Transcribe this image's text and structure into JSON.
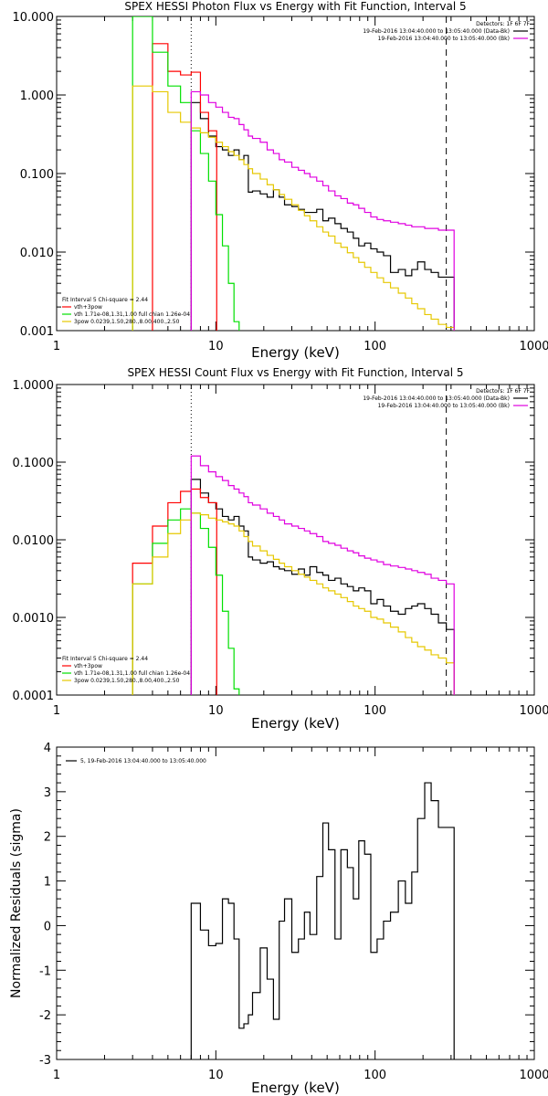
{
  "colors": {
    "black": "#000000",
    "red": "#ff0000",
    "green": "#00e000",
    "yellow": "#e6c800",
    "magenta": "#e000e0"
  },
  "chart_data": [
    {
      "id": "photon",
      "type": "line",
      "title": "SPEX HESSI Photon Flux vs Energy with Fit Function, Interval 5",
      "xlabel": "Energy (keV)",
      "ylabel": "",
      "xscale": "log",
      "yscale": "log",
      "xlim": [
        1,
        1000
      ],
      "ylim": [
        0.001,
        10
      ],
      "xticks": [
        "1",
        "10",
        "100",
        "1000"
      ],
      "yticks": [
        "0.001",
        "0.010",
        "0.100",
        "1.000",
        "10.000"
      ],
      "vline_dotted": 7,
      "vline_dashed": 280,
      "legend_top": [
        "Detectors: 1F 6F 7F",
        "19-Feb-2016 13:04:40.000 to 13:05:40.000 (Data-Bk)",
        "19-Feb-2016 13:04:40.000 to 13:05:40.000 (Bk)"
      ],
      "legend_bottom": [
        "Fit Interval 5   Chi-square = 2.44",
        "vth+3pow",
        "vth 1.71e-08,1.31,1.00  full chian 1.26e-04",
        "3pow 0.0239,1.50,280.,8.00,400.,2.50"
      ],
      "series": [
        {
          "name": "Data-Bk",
          "color": "black",
          "x": [
            7,
            8,
            9,
            10,
            11,
            12,
            13,
            14,
            15,
            16,
            17,
            19,
            21,
            23,
            25,
            27,
            30,
            33,
            36,
            39,
            43,
            47,
            51,
            56,
            61,
            67,
            73,
            79,
            86,
            94,
            103,
            113,
            125,
            140,
            155,
            170,
            185,
            205,
            225,
            250,
            280
          ],
          "y": [
            0.8,
            0.5,
            0.3,
            0.22,
            0.2,
            0.17,
            0.2,
            0.15,
            0.17,
            0.058,
            0.06,
            0.055,
            0.05,
            0.062,
            0.05,
            0.04,
            0.038,
            0.035,
            0.032,
            0.032,
            0.035,
            0.025,
            0.027,
            0.023,
            0.02,
            0.018,
            0.015,
            0.012,
            0.013,
            0.011,
            0.01,
            0.009,
            0.0055,
            0.006,
            0.005,
            0.006,
            0.0075,
            0.006,
            0.0055,
            0.0048,
            0.0048
          ]
        },
        {
          "name": "vth+3pow",
          "color": "red",
          "x": [
            4,
            5,
            6,
            7,
            8,
            9
          ],
          "y": [
            4.5,
            2.0,
            1.8,
            1.95,
            0.6,
            0.35
          ]
        },
        {
          "name": "vth",
          "color": "green",
          "x": [
            3,
            4,
            5,
            6,
            7,
            8,
            9,
            10,
            11,
            12,
            13,
            14
          ],
          "y": [
            10,
            3.5,
            1.3,
            0.8,
            0.35,
            0.18,
            0.08,
            0.03,
            0.012,
            0.004,
            0.0013,
            0.0004
          ]
        },
        {
          "name": "3pow",
          "color": "yellow",
          "x": [
            3,
            4,
            5,
            6,
            7,
            8,
            9,
            10,
            11,
            12,
            13,
            14,
            15,
            16,
            17,
            19,
            21,
            23,
            25,
            27,
            30,
            33,
            36,
            39,
            43,
            47,
            51,
            56,
            61,
            67,
            73,
            79,
            86,
            94,
            103,
            113,
            125,
            140,
            155,
            170,
            185,
            205,
            225,
            250,
            280
          ],
          "y": [
            1.3,
            1.1,
            0.6,
            0.45,
            0.38,
            0.33,
            0.29,
            0.25,
            0.22,
            0.19,
            0.17,
            0.15,
            0.13,
            0.115,
            0.1,
            0.085,
            0.072,
            0.062,
            0.054,
            0.047,
            0.04,
            0.034,
            0.029,
            0.025,
            0.021,
            0.018,
            0.016,
            0.013,
            0.0115,
            0.0098,
            0.0085,
            0.0074,
            0.0064,
            0.0055,
            0.0047,
            0.0041,
            0.0035,
            0.003,
            0.0026,
            0.0022,
            0.0019,
            0.0016,
            0.0014,
            0.0012,
            0.0011
          ]
        },
        {
          "name": "Bk",
          "color": "magenta",
          "x": [
            7,
            8,
            9,
            10,
            11,
            12,
            13,
            14,
            15,
            16,
            17,
            19,
            21,
            23,
            25,
            27,
            30,
            33,
            36,
            39,
            43,
            47,
            51,
            56,
            61,
            67,
            73,
            79,
            86,
            94,
            103,
            113,
            125,
            140,
            155,
            170,
            185,
            205,
            225,
            250,
            280
          ],
          "y": [
            1.1,
            1.0,
            0.8,
            0.7,
            0.6,
            0.52,
            0.5,
            0.42,
            0.36,
            0.3,
            0.28,
            0.25,
            0.2,
            0.18,
            0.15,
            0.14,
            0.12,
            0.11,
            0.1,
            0.09,
            0.08,
            0.07,
            0.06,
            0.052,
            0.048,
            0.042,
            0.04,
            0.036,
            0.032,
            0.028,
            0.026,
            0.025,
            0.024,
            0.023,
            0.022,
            0.021,
            0.021,
            0.02,
            0.02,
            0.019,
            0.019
          ]
        }
      ]
    },
    {
      "id": "count",
      "type": "line",
      "title": "SPEX HESSI Count Flux vs Energy with Fit Function, Interval 5",
      "xlabel": "Energy (keV)",
      "ylabel": "",
      "xscale": "log",
      "yscale": "log",
      "xlim": [
        1,
        1000
      ],
      "ylim": [
        0.0001,
        1
      ],
      "xticks": [
        "1",
        "10",
        "100",
        "1000"
      ],
      "yticks": [
        "0.0001",
        "0.0010",
        "0.0100",
        "0.1000",
        "1.0000"
      ],
      "vline_dotted": 7,
      "vline_dashed": 280,
      "legend_top": [
        "Detectors: 1F 6F 7F",
        "19-Feb-2016 13:04:40.000 to 13:05:40.000 (Data-Bk)",
        "19-Feb-2016 13:04:40.000 to 13:05:40.000 (Bk)"
      ],
      "legend_bottom": [
        "Fit Interval 5   Chi-square = 2.44",
        "vth+3pow",
        "vth 1.71e-08,1.31,1.00  full chian 1.26e-04",
        "3pow 0.0239,1.50,280.,8.00,400.,2.50"
      ],
      "series": [
        {
          "name": "Data-Bk",
          "color": "black",
          "x": [
            7,
            8,
            9,
            10,
            11,
            12,
            13,
            14,
            15,
            16,
            17,
            19,
            21,
            23,
            25,
            27,
            30,
            33,
            36,
            39,
            43,
            47,
            51,
            56,
            61,
            67,
            73,
            79,
            86,
            94,
            103,
            113,
            125,
            140,
            155,
            170,
            185,
            205,
            225,
            250,
            280
          ],
          "y": [
            0.06,
            0.04,
            0.03,
            0.025,
            0.02,
            0.018,
            0.02,
            0.015,
            0.013,
            0.006,
            0.0055,
            0.005,
            0.0052,
            0.0045,
            0.0042,
            0.004,
            0.0036,
            0.0042,
            0.0035,
            0.0045,
            0.0038,
            0.0035,
            0.003,
            0.0032,
            0.0027,
            0.0025,
            0.0022,
            0.0024,
            0.0022,
            0.0015,
            0.0017,
            0.0014,
            0.0012,
            0.0011,
            0.0013,
            0.0014,
            0.0015,
            0.0013,
            0.0011,
            0.00085,
            0.0007
          ]
        },
        {
          "name": "vth+3pow",
          "color": "red",
          "x": [
            3,
            4,
            5,
            6,
            7,
            8,
            9
          ],
          "y": [
            0.005,
            0.015,
            0.03,
            0.042,
            0.045,
            0.035,
            0.03
          ]
        },
        {
          "name": "vth",
          "color": "green",
          "x": [
            3,
            4,
            5,
            6,
            7,
            8,
            9,
            10,
            11,
            12,
            13,
            14
          ],
          "y": [
            0.0027,
            0.009,
            0.018,
            0.025,
            0.022,
            0.014,
            0.008,
            0.0035,
            0.0012,
            0.0004,
            0.00012,
            4e-05
          ]
        },
        {
          "name": "3pow",
          "color": "yellow",
          "x": [
            3,
            4,
            5,
            6,
            7,
            8,
            9,
            10,
            11,
            12,
            13,
            14,
            15,
            16,
            17,
            19,
            21,
            23,
            25,
            27,
            30,
            33,
            36,
            39,
            43,
            47,
            51,
            56,
            61,
            67,
            73,
            79,
            86,
            94,
            103,
            113,
            125,
            140,
            155,
            170,
            185,
            205,
            225,
            250,
            280
          ],
          "y": [
            0.0027,
            0.006,
            0.012,
            0.018,
            0.022,
            0.021,
            0.019,
            0.018,
            0.017,
            0.016,
            0.015,
            0.013,
            0.011,
            0.0095,
            0.0083,
            0.0072,
            0.0063,
            0.0056,
            0.005,
            0.0045,
            0.004,
            0.0036,
            0.0033,
            0.003,
            0.0027,
            0.0024,
            0.0022,
            0.002,
            0.0018,
            0.0016,
            0.0014,
            0.0013,
            0.0012,
            0.001,
            0.00095,
            0.00085,
            0.00075,
            0.00065,
            0.00055,
            0.00048,
            0.00042,
            0.00038,
            0.00033,
            0.0003,
            0.00026
          ]
        },
        {
          "name": "Bk",
          "color": "magenta",
          "x": [
            7,
            8,
            9,
            10,
            11,
            12,
            13,
            14,
            15,
            16,
            17,
            19,
            21,
            23,
            25,
            27,
            30,
            33,
            36,
            39,
            43,
            47,
            51,
            56,
            61,
            67,
            73,
            79,
            86,
            94,
            103,
            113,
            125,
            140,
            155,
            170,
            185,
            205,
            225,
            250,
            280
          ],
          "y": [
            0.12,
            0.09,
            0.075,
            0.065,
            0.058,
            0.05,
            0.045,
            0.04,
            0.036,
            0.03,
            0.028,
            0.025,
            0.022,
            0.02,
            0.018,
            0.016,
            0.015,
            0.014,
            0.013,
            0.012,
            0.011,
            0.0095,
            0.009,
            0.0085,
            0.0078,
            0.0072,
            0.0068,
            0.0062,
            0.0058,
            0.0055,
            0.0052,
            0.0048,
            0.0046,
            0.0044,
            0.0042,
            0.004,
            0.0038,
            0.0036,
            0.0032,
            0.003,
            0.0027
          ]
        }
      ]
    },
    {
      "id": "residuals",
      "type": "line",
      "title": "",
      "xlabel": "Energy (keV)",
      "ylabel": "Normalized Residuals (sigma)",
      "xscale": "log",
      "yscale": "linear",
      "xlim": [
        1,
        1000
      ],
      "ylim": [
        -3,
        4
      ],
      "xticks": [
        "1",
        "10",
        "100",
        "1000"
      ],
      "yticks": [
        "-3",
        "-2",
        "-1",
        "0",
        "1",
        "2",
        "3",
        "4"
      ],
      "legend_top": [
        "5, 19-Feb-2016 13:04:40.000 to 13:05:40.000"
      ],
      "series": [
        {
          "name": "5, 19-Feb-2016 13:04:40.000 to 13:05:40.000",
          "color": "black",
          "x": [
            7,
            8,
            9,
            10,
            11,
            12,
            13,
            14,
            15,
            16,
            17,
            19,
            21,
            23,
            25,
            27,
            30,
            33,
            36,
            39,
            43,
            47,
            51,
            56,
            61,
            67,
            73,
            79,
            86,
            94,
            103,
            113,
            125,
            140,
            155,
            170,
            185,
            205,
            225,
            250,
            280
          ],
          "y": [
            0.5,
            -0.1,
            -0.45,
            -0.4,
            0.6,
            0.5,
            -0.3,
            -2.3,
            -2.2,
            -2.0,
            -1.5,
            -0.5,
            -1.2,
            -2.1,
            0.1,
            0.6,
            -0.6,
            -0.3,
            0.3,
            -0.2,
            1.1,
            2.3,
            1.7,
            -0.3,
            1.7,
            1.3,
            0.6,
            1.9,
            1.6,
            -0.6,
            -0.3,
            0.1,
            0.3,
            1.0,
            0.5,
            1.2,
            2.4,
            3.2,
            2.8,
            2.2,
            2.2
          ]
        }
      ]
    }
  ]
}
